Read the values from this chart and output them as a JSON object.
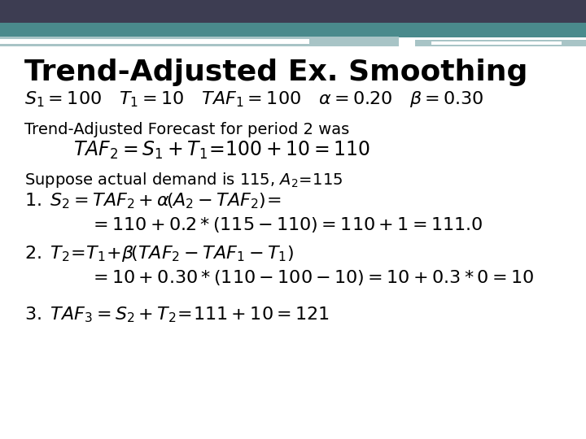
{
  "title": "Trend-Adjusted Ex. Smoothing",
  "bg_color": "#ffffff",
  "header_dark_color": "#3d3d52",
  "header_teal_color": "#4a8a8c",
  "header_light_teal": "#a8c4c6",
  "title_fontsize": 26,
  "body_fontsize": 14,
  "math_fontsize": 16,
  "line1": "$S_1 = 100 \\quad T_1 = 10 \\quad TAF_1 = 100 \\quad \\alpha = 0.20 \\quad \\beta = 0.30$",
  "line2_text": "Trend-Adjusted Forecast for period 2 was",
  "line3": "$TAF_2 = S_1 + T_1\\!=\\!100 + 10 = 110$",
  "line4_text": "Suppose actual demand is 115, $A_2\\!=\\!115$",
  "line5": "$1.\\; S_2 = TAF_2 + \\alpha\\!\\left(A_2 - TAF_2\\right)\\!=$",
  "line6": "$= 110 + 0.2*(115-110) = 110+1 = 111.0$",
  "line7": "$2.\\; T_2\\!=\\!T_1\\!+\\!\\beta\\!\\left(TAF_2 - TAF_1 - T_1\\right)$",
  "line8": "$= 10 + 0.30*(110-100-10) = 10+0.3*0 = 10$",
  "line9": "$3.\\; TAF_3 = S_2 + T_2\\!=\\!111+10 = 121$"
}
